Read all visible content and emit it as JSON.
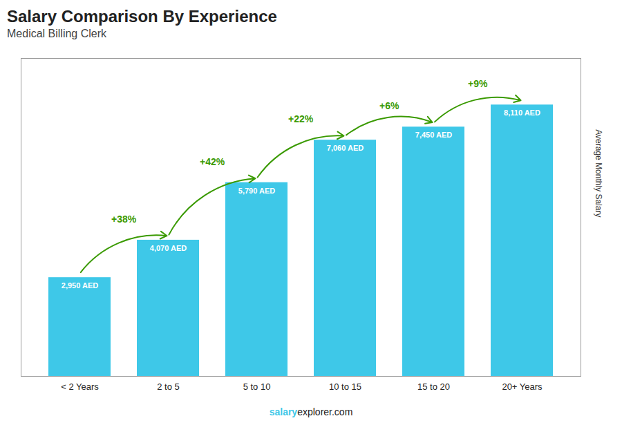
{
  "chart_data": {
    "type": "bar",
    "title": "Salary Comparison By Experience",
    "subtitle": "Medical Billing Clerk",
    "ylabel": "Average Monthly Salary",
    "caption": [
      "salary",
      "explorer.com"
    ],
    "categories": [
      "< 2 Years",
      "2 to 5",
      "5 to 10",
      "10 to 15",
      "15 to 20",
      "20+ Years"
    ],
    "values": [
      2950,
      4070,
      5790,
      7060,
      7450,
      8110
    ],
    "value_labels": [
      "2,950 AED",
      "4,070 AED",
      "5,790 AED",
      "7,060 AED",
      "7,450 AED",
      "8,110 AED"
    ],
    "annotations": [
      "+38%",
      "+42%",
      "+22%",
      "+6%",
      "+9%"
    ],
    "color": "#3ec8e8",
    "ylim": [
      0,
      9500
    ],
    "data_labels": true,
    "tick_labels": "x"
  }
}
